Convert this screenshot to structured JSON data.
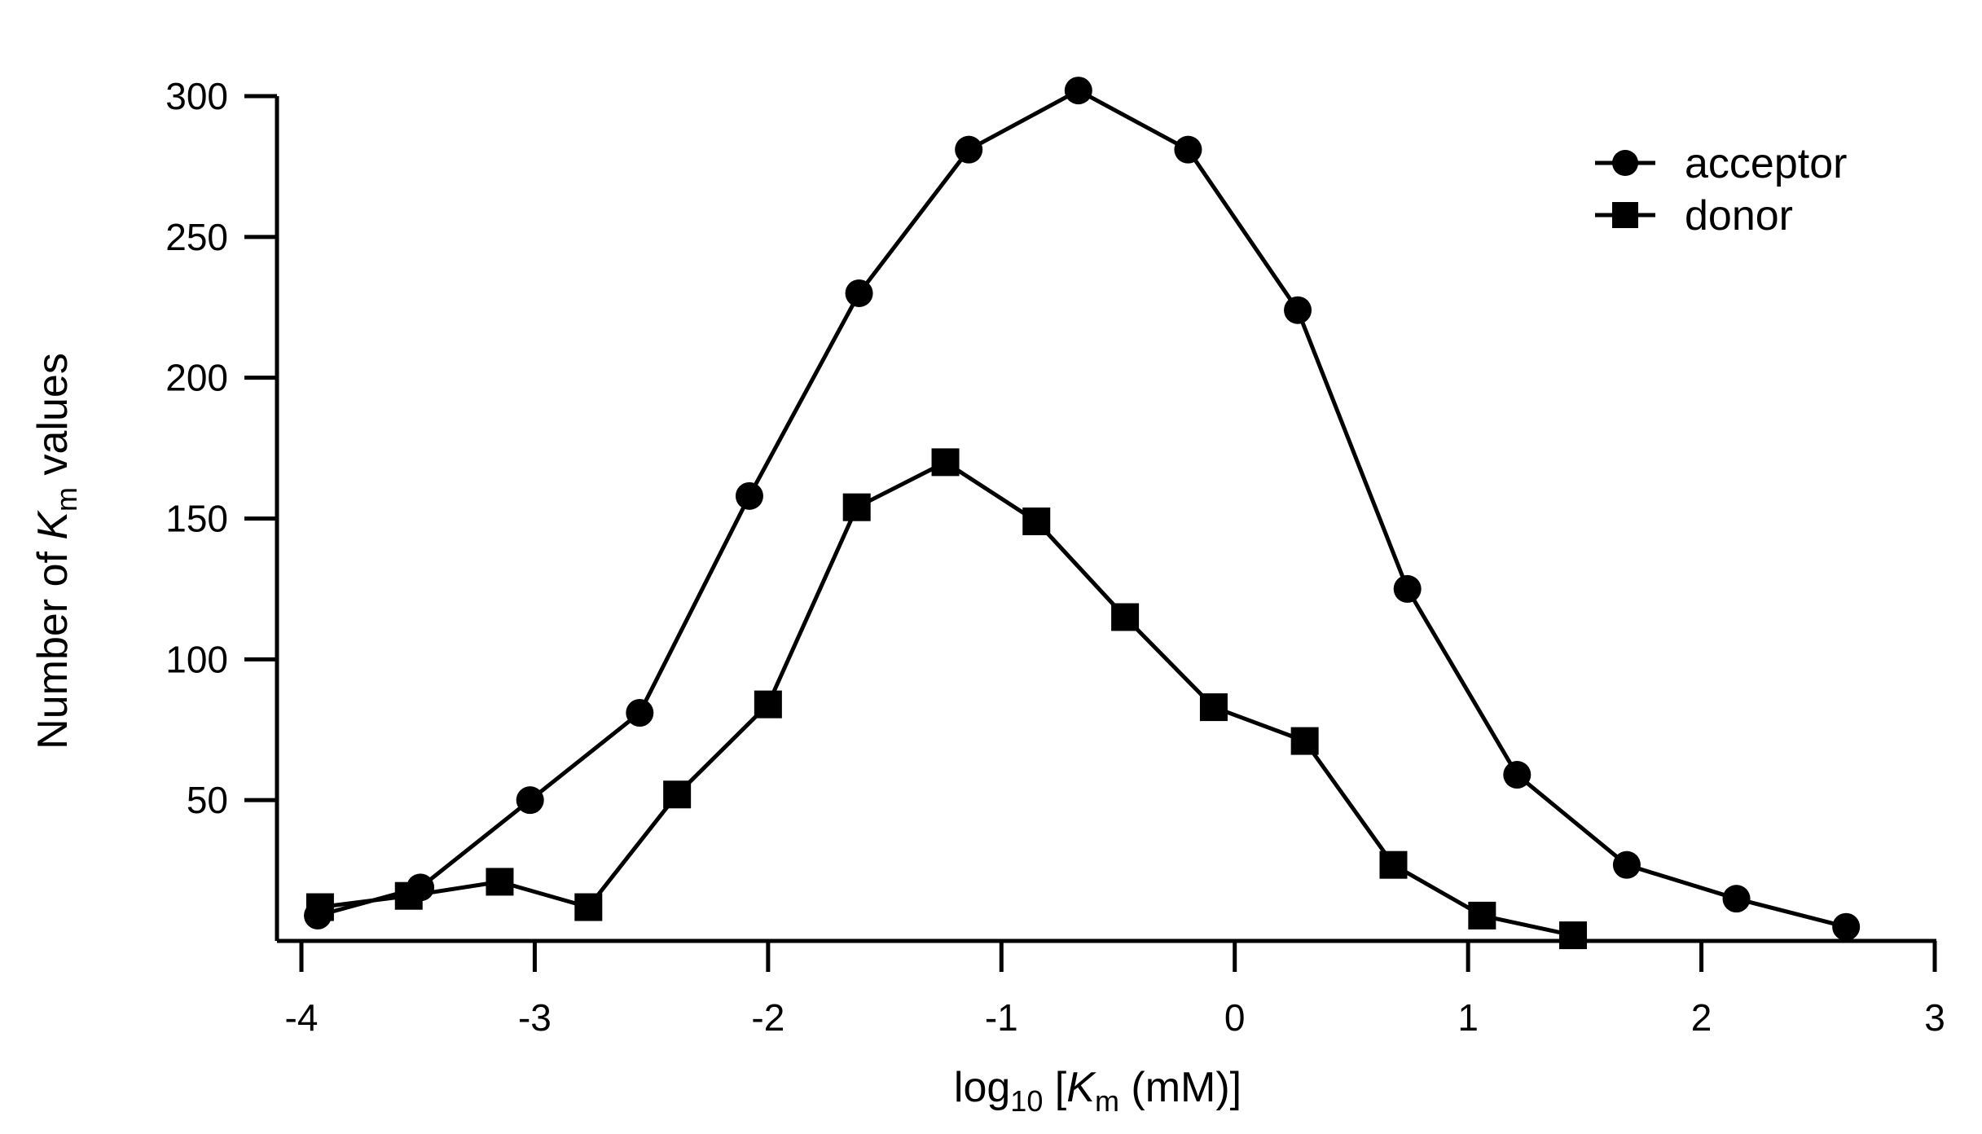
{
  "chart_data": {
    "type": "line",
    "title": "",
    "xlabel": {
      "prefix": "log",
      "subscript": "10",
      "open": " [",
      "italic": "K",
      "italic_sub": "m",
      "suffix": " (mM)]"
    },
    "ylabel": {
      "prefix": "Number of ",
      "italic": "K",
      "italic_sub": "m",
      "suffix": " values"
    },
    "xlim": [
      -4,
      3
    ],
    "ylim": [
      0,
      300
    ],
    "x_ticks": [
      -4,
      -3,
      -2,
      -1,
      0,
      1,
      2,
      3
    ],
    "x_tick_labels": [
      "-4",
      "-3",
      "-2",
      "-1",
      "0",
      "1",
      "2",
      "3"
    ],
    "y_ticks": [
      50,
      100,
      150,
      200,
      250,
      300
    ],
    "y_tick_labels": [
      "50",
      "100",
      "150",
      "200",
      "250",
      "300"
    ],
    "grid": false,
    "legend_position": "top-right",
    "series": [
      {
        "name": "acceptor",
        "marker": "circle",
        "color": "#000000",
        "x": [
          -3.93,
          -3.49,
          -3.02,
          -2.55,
          -2.08,
          -1.61,
          -1.14,
          -0.67,
          -0.2,
          0.27,
          0.74,
          1.21,
          1.68,
          2.15,
          2.62
        ],
        "y": [
          9,
          19,
          50,
          81,
          158,
          230,
          281,
          302,
          281,
          224,
          125,
          59,
          27,
          15,
          5
        ]
      },
      {
        "name": "donor",
        "marker": "square",
        "color": "#000000",
        "x": [
          -3.92,
          -3.54,
          -3.15,
          -2.77,
          -2.39,
          -2.0,
          -1.62,
          -1.24,
          -0.85,
          -0.47,
          -0.09,
          0.3,
          0.68,
          1.06,
          1.45
        ],
        "y": [
          12,
          16,
          21,
          12,
          52,
          84,
          154,
          170,
          149,
          115,
          83,
          71,
          27,
          9,
          2
        ]
      }
    ]
  }
}
